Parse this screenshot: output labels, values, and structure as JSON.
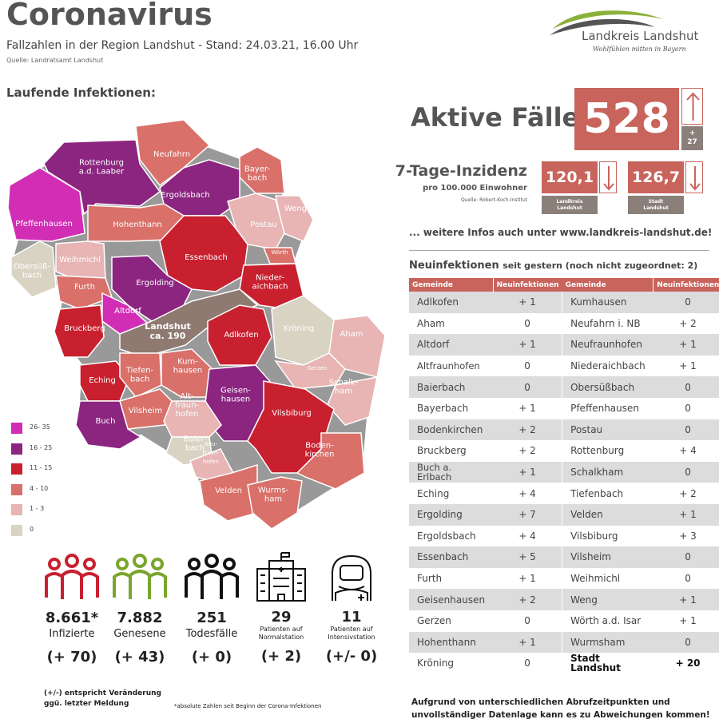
{
  "header": {
    "title": "Coronavirus",
    "subtitle": "Fallzahlen in der Region Landshut - Stand: 24.03.21, 16.00 Uhr",
    "source": "Quelle: Landratsamt Landshut"
  },
  "logo": {
    "name": "Landkreis Landshut",
    "slogan": "Wohlfühlen mitten in Bayern"
  },
  "map": {
    "heading": "Laufende Infektionen:",
    "regions": [
      {
        "label": [
          "Rottenburg",
          "a.d. Laaber"
        ]
      },
      {
        "label": [
          "Pfeffenhausen"
        ]
      },
      {
        "label": [
          "Neufahrn"
        ]
      },
      {
        "label": [
          "Bayer-",
          "bach"
        ]
      },
      {
        "label": [
          "Ergoldsbach"
        ]
      },
      {
        "label": [
          "Weng"
        ]
      },
      {
        "label": [
          "Hohenthann"
        ]
      },
      {
        "label": [
          "Postau"
        ]
      },
      {
        "label": [
          "Obersüß-",
          "bach"
        ]
      },
      {
        "label": [
          "Weihmichl"
        ]
      },
      {
        "label": [
          "Essenbach"
        ]
      },
      {
        "label": [
          "Wörth"
        ]
      },
      {
        "label": [
          "Furth"
        ]
      },
      {
        "label": [
          "Ergolding"
        ]
      },
      {
        "label": [
          "Nieder-",
          "aichbach"
        ]
      },
      {
        "label": [
          "Altdorf"
        ]
      },
      {
        "label": [
          "Bruckberg"
        ]
      },
      {
        "label": [
          "Landshut",
          "ca. 190"
        ]
      },
      {
        "label": [
          "Adlkofen"
        ]
      },
      {
        "label": [
          "Kröning"
        ]
      },
      {
        "label": [
          "Aham"
        ]
      },
      {
        "label": [
          "Gerzen"
        ]
      },
      {
        "label": [
          "Eching"
        ]
      },
      {
        "label": [
          "Tiefen-",
          "bach"
        ]
      },
      {
        "label": [
          "Kum-",
          "hausen"
        ]
      },
      {
        "label": [
          "Schalk-",
          "ham"
        ]
      },
      {
        "label": [
          "Geisen-",
          "hausen"
        ]
      },
      {
        "label": [
          "Vilsheim"
        ]
      },
      {
        "label": [
          "Alt-",
          "fraun-",
          "hofen"
        ]
      },
      {
        "label": [
          "Vilsbiburg"
        ]
      },
      {
        "label": [
          "Buch"
        ]
      },
      {
        "label": [
          "Baier-",
          "bach"
        ]
      },
      {
        "label": [
          "Neu-",
          "fraun-",
          "hofen"
        ]
      },
      {
        "label": [
          "Boden-",
          "kirchen"
        ]
      },
      {
        "label": [
          "Velden"
        ]
      },
      {
        "label": [
          "Wurms-",
          "ham"
        ]
      }
    ],
    "legend": [
      "26- 35",
      "16 - 25",
      "11 - 15",
      "4 - 10",
      "1 - 3",
      "0"
    ]
  },
  "active": {
    "label": "Aktive Fälle",
    "value": "528",
    "change_sign": "+",
    "change_value": "27"
  },
  "incidence": {
    "label": "7-Tage-Inzidenz",
    "sublabel": "pro 100.000 Einwohner",
    "source": "Quelle: Robert-Koch-Institut",
    "items": [
      {
        "value": "120,1",
        "label": [
          "Landkreis",
          "Landshut"
        ]
      },
      {
        "value": "126,7",
        "label": [
          "Stadt",
          "Landshut"
        ]
      }
    ]
  },
  "more_info": "... weitere Infos auch unter www.landkreis-landshut.de!",
  "table": {
    "title": "Neuinfektionen",
    "title_note": "seit gestern (noch nicht zugeordnet: 2)",
    "headers": [
      "Gemeinde",
      "Neuinfektionen",
      "Gemeinde",
      "Neuinfektionen"
    ],
    "rows": [
      [
        "Adlkofen",
        "+ 1",
        "Kumhausen",
        "0"
      ],
      [
        "Aham",
        "0",
        "Neufahrn i. NB",
        "+ 2"
      ],
      [
        "Altdorf",
        "+ 1",
        "Neufraunhofen",
        "+ 1"
      ],
      [
        "Altfraunhofen",
        "0",
        "Niederaichbach",
        "+ 1"
      ],
      [
        "Baierbach",
        "0",
        "Obersüßbach",
        "0"
      ],
      [
        "Bayerbach",
        "+ 1",
        "Pfeffenhausen",
        "0"
      ],
      [
        "Bodenkirchen",
        "+ 2",
        "Postau",
        "0"
      ],
      [
        "Bruckberg",
        "+ 2",
        "Rottenburg",
        "+ 4"
      ],
      [
        "Buch a. Erlbach",
        "+ 1",
        "Schalkham",
        "0"
      ],
      [
        "Eching",
        "+ 4",
        "Tiefenbach",
        "+ 2"
      ],
      [
        "Ergolding",
        "+ 7",
        "Velden",
        "+ 1"
      ],
      [
        "Ergoldsbach",
        "+ 4",
        "Vilsbiburg",
        "+ 3"
      ],
      [
        "Essenbach",
        "+ 5",
        "Vilsheim",
        "0"
      ],
      [
        "Furth",
        "+ 1",
        "Weihmichl",
        "0"
      ],
      [
        "Geisenhausen",
        "+ 2",
        "Weng",
        "+ 1"
      ],
      [
        "Gerzen",
        "0",
        "Wörth a.d. Isar",
        "+ 1"
      ],
      [
        "Hohenthann",
        "+ 1",
        "Wurmsham",
        "0"
      ],
      [
        "Kröning",
        "0",
        "Stadt Landshut",
        "+ 20"
      ]
    ]
  },
  "stats": [
    {
      "value": "8.661*",
      "label": [
        "Infizierte"
      ],
      "change": "(+ 70)"
    },
    {
      "value": "7.882",
      "label": [
        "Genesene"
      ],
      "change": "(+ 43)"
    },
    {
      "value": "251",
      "label": [
        "Todesfälle"
      ],
      "change": "(+ 0)"
    },
    {
      "value": "29",
      "label": [
        "Patienten auf",
        "Normalstation"
      ],
      "change": "(+ 2)"
    },
    {
      "value": "11",
      "label": [
        "Patienten auf",
        "Intensivstation"
      ],
      "change": "(+/- 0)"
    }
  ],
  "notes": {
    "change_note": [
      "(+/-) entspricht Veränderung",
      "ggü. letzter Meldung"
    ],
    "absolute_note": "*absolute Zahlen seit Beginn der Corona-Infektionen",
    "disclaimer": [
      "Aufgrund von unterschiedlichen Abrufzeitpunkten und",
      "unvollständiger Datenlage kann es zu Abweichungen kommen!"
    ]
  }
}
